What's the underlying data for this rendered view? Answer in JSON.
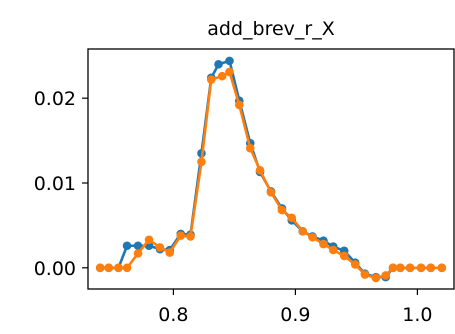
{
  "chart_data": {
    "type": "line",
    "title": "add_brev_r_X",
    "xlabel": "",
    "ylabel": "",
    "xlim": [
      0.73,
      1.03
    ],
    "ylim": [
      -0.0025,
      0.0258
    ],
    "xticks": [
      {
        "value": 0.8,
        "label": "0.8"
      },
      {
        "value": 0.9,
        "label": "0.9"
      },
      {
        "value": 1.0,
        "label": "1.0"
      }
    ],
    "yticks": [
      {
        "value": 0.0,
        "label": "0.00"
      },
      {
        "value": 0.01,
        "label": "0.01"
      },
      {
        "value": 0.02,
        "label": "0.02"
      }
    ],
    "grid": false,
    "series": [
      {
        "color": "#1f77b4",
        "marker": "circle",
        "points": [
          [
            0.74,
            0.0
          ],
          [
            0.747,
            0.0
          ],
          [
            0.755,
            0.0
          ],
          [
            0.762,
            0.0026
          ],
          [
            0.771,
            0.0026
          ],
          [
            0.78,
            0.0026
          ],
          [
            0.789,
            0.0022
          ],
          [
            0.797,
            0.0021
          ],
          [
            0.806,
            0.004
          ],
          [
            0.814,
            0.0039
          ],
          [
            0.823,
            0.0135
          ],
          [
            0.831,
            0.0224
          ],
          [
            0.837,
            0.024
          ],
          [
            0.846,
            0.0244
          ],
          [
            0.854,
            0.0197
          ],
          [
            0.863,
            0.0147
          ],
          [
            0.871,
            0.0113
          ],
          [
            0.88,
            0.009
          ],
          [
            0.889,
            0.007
          ],
          [
            0.897,
            0.0056
          ],
          [
            0.906,
            0.0043
          ],
          [
            0.914,
            0.0037
          ],
          [
            0.923,
            0.0032
          ],
          [
            0.931,
            0.0025
          ],
          [
            0.94,
            0.002
          ],
          [
            0.949,
            0.0006
          ],
          [
            0.957,
            -0.0007
          ],
          [
            0.966,
            -0.0011
          ],
          [
            0.974,
            -0.0011
          ],
          [
            0.98,
            0.0
          ],
          [
            0.986,
            0.0
          ],
          [
            0.994,
            0.0
          ],
          [
            1.003,
            0.0
          ],
          [
            1.011,
            0.0
          ],
          [
            1.02,
            0.0
          ]
        ]
      },
      {
        "color": "#ff7f0e",
        "marker": "circle",
        "points": [
          [
            0.74,
            0.0
          ],
          [
            0.747,
            0.0
          ],
          [
            0.755,
            0.0
          ],
          [
            0.762,
            0.0
          ],
          [
            0.771,
            0.0017
          ],
          [
            0.78,
            0.0033
          ],
          [
            0.789,
            0.0024
          ],
          [
            0.797,
            0.0018
          ],
          [
            0.806,
            0.0038
          ],
          [
            0.814,
            0.0037
          ],
          [
            0.823,
            0.0125
          ],
          [
            0.831,
            0.0222
          ],
          [
            0.84,
            0.0226
          ],
          [
            0.846,
            0.0231
          ],
          [
            0.854,
            0.0192
          ],
          [
            0.863,
            0.0141
          ],
          [
            0.871,
            0.0115
          ],
          [
            0.88,
            0.0089
          ],
          [
            0.889,
            0.0068
          ],
          [
            0.897,
            0.0059
          ],
          [
            0.906,
            0.0043
          ],
          [
            0.914,
            0.0036
          ],
          [
            0.923,
            0.0028
          ],
          [
            0.931,
            0.0021
          ],
          [
            0.94,
            0.0014
          ],
          [
            0.949,
            0.0004
          ],
          [
            0.957,
            -0.0008
          ],
          [
            0.966,
            -0.0012
          ],
          [
            0.974,
            -0.0009
          ],
          [
            0.98,
            0.0
          ],
          [
            0.986,
            0.0
          ],
          [
            0.994,
            0.0
          ],
          [
            1.003,
            0.0
          ],
          [
            1.011,
            0.0
          ],
          [
            1.02,
            0.0
          ]
        ]
      }
    ]
  }
}
